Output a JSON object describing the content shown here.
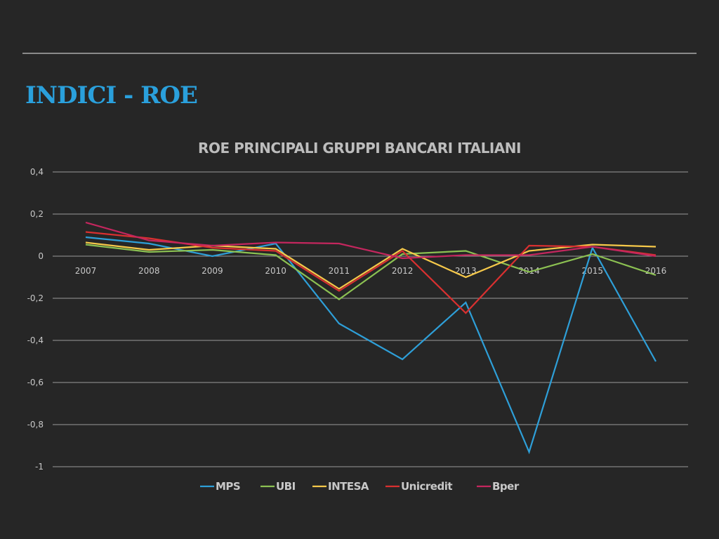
{
  "slide": {
    "title": "INDICI - ROE"
  },
  "chart_data": {
    "type": "line",
    "title": "ROE PRINCIPALI GRUPPI BANCARI ITALIANI",
    "xlabel": "",
    "ylabel": "",
    "categories": [
      "2007",
      "2008",
      "2009",
      "2010",
      "2011",
      "2012",
      "2013",
      "2014",
      "2015",
      "2016"
    ],
    "ylim": [
      -1,
      0.4
    ],
    "yticks": [
      0.4,
      0.2,
      0,
      -0.2,
      -0.4,
      -0.6,
      -0.8,
      -1
    ],
    "ytick_labels": [
      "0,4",
      "0,2",
      "0",
      "-0,2",
      "-0,4",
      "-0,6",
      "-0,8",
      "-1"
    ],
    "grid": true,
    "legend_position": "bottom",
    "series": [
      {
        "name": "MPS",
        "color": "#2e9fd8",
        "values": [
          0.09,
          0.06,
          0.0,
          0.06,
          -0.32,
          -0.49,
          -0.22,
          -0.93,
          0.04,
          -0.5
        ]
      },
      {
        "name": "UBI",
        "color": "#8cc152",
        "values": [
          0.055,
          0.02,
          0.03,
          0.005,
          -0.205,
          0.01,
          0.025,
          -0.075,
          0.01,
          -0.09
        ]
      },
      {
        "name": "INTESA",
        "color": "#f6c94a",
        "values": [
          0.065,
          0.03,
          0.05,
          0.035,
          -0.155,
          0.035,
          -0.1,
          0.025,
          0.055,
          0.045
        ]
      },
      {
        "name": "Unicredit",
        "color": "#d93030",
        "values": [
          0.115,
          0.085,
          0.04,
          0.025,
          -0.165,
          0.025,
          -0.27,
          0.05,
          0.045,
          0.005
        ]
      },
      {
        "name": "Bper",
        "color": "#c4265e",
        "values": [
          0.16,
          0.075,
          0.05,
          0.065,
          0.06,
          -0.01,
          0.005,
          0.005,
          0.045,
          0.0
        ]
      }
    ]
  }
}
